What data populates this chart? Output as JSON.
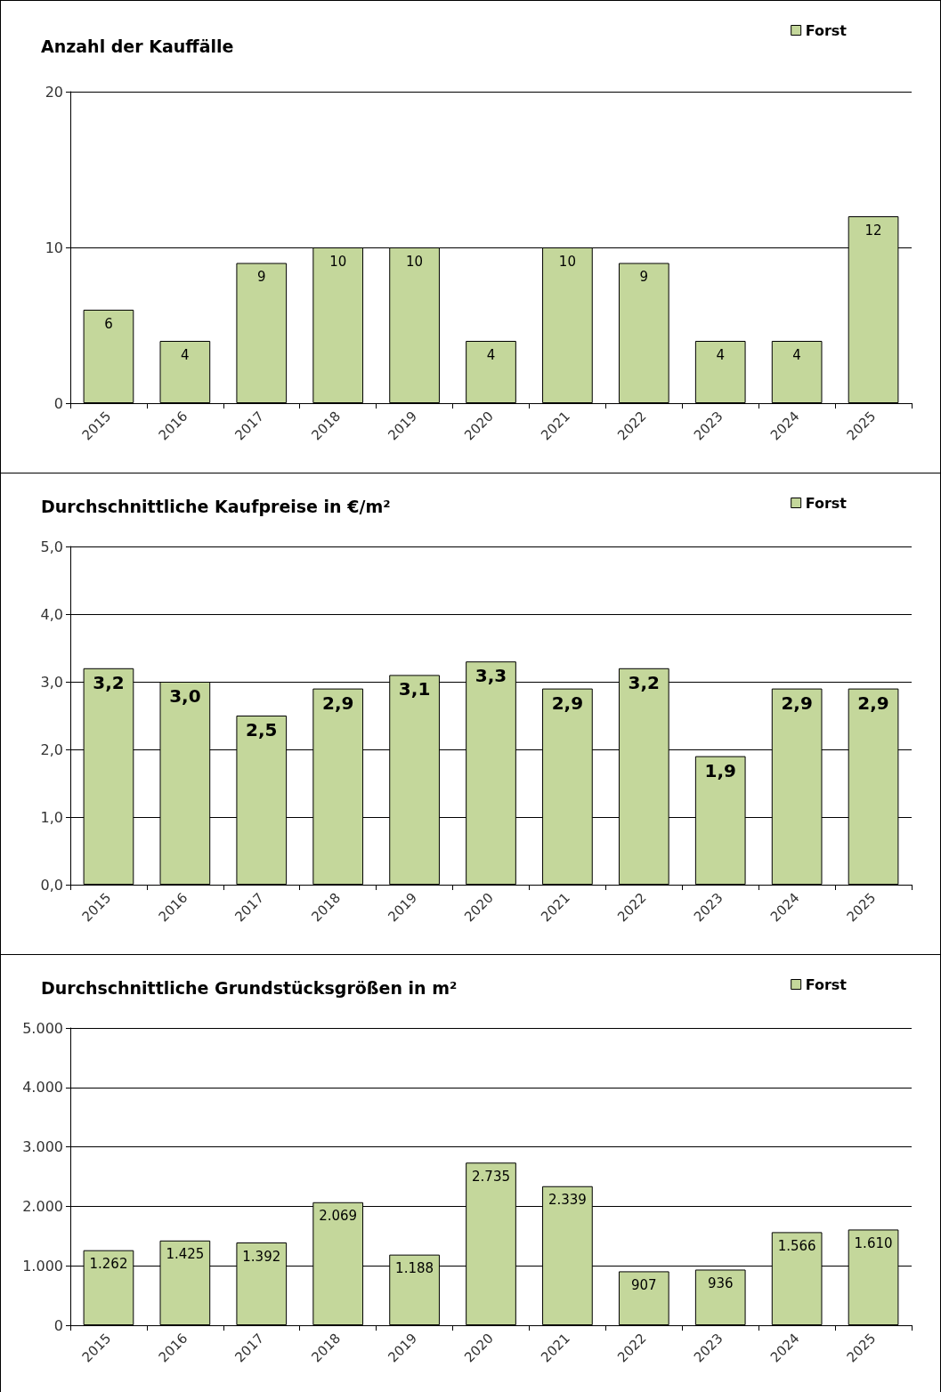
{
  "chart_data": [
    {
      "type": "bar",
      "title": "Anzahl der Kauffälle",
      "categories": [
        "2015",
        "2016",
        "2017",
        "2018",
        "2019",
        "2020",
        "2021",
        "2022",
        "2023",
        "2024",
        "2025"
      ],
      "series": [
        {
          "name": "Forst",
          "color": "#c4d79b",
          "values": [
            6,
            4,
            9,
            10,
            10,
            4,
            10,
            9,
            4,
            4,
            12
          ]
        }
      ],
      "data_labels": true,
      "ylim": [
        0,
        20
      ],
      "yticks": [
        0,
        10,
        20
      ],
      "grid": "y",
      "legend": "top right"
    },
    {
      "type": "bar",
      "title": "Durchschnittliche Kaufpreise in €/m²",
      "categories": [
        "2015",
        "2016",
        "2017",
        "2018",
        "2019",
        "2020",
        "2021",
        "2022",
        "2023",
        "2024",
        "2025"
      ],
      "series": [
        {
          "name": "Forst",
          "color": "#c4d79b",
          "values": [
            3.2,
            3.0,
            2.5,
            2.9,
            3.1,
            3.3,
            2.9,
            3.2,
            1.9,
            2.9,
            2.9
          ],
          "value_labels": [
            "3,2",
            "3,0",
            "2,5",
            "2,9",
            "3,1",
            "3,3",
            "2,9",
            "3,2",
            "1,9",
            "2,9",
            "2,9"
          ]
        }
      ],
      "ylim": [
        0,
        5
      ],
      "yticks": [
        {
          "value": 0,
          "label": "0,0"
        },
        {
          "value": 1,
          "label": "1,0"
        },
        {
          "value": 2,
          "label": "2,0"
        },
        {
          "value": 3,
          "label": "3,0"
        },
        {
          "value": 4,
          "label": "4,0"
        },
        {
          "value": 5,
          "label": "5,0"
        }
      ],
      "grid": "y",
      "legend": "top right"
    },
    {
      "type": "bar",
      "title": "Durchschnittliche Grundstücksgrößen in m²",
      "categories": [
        "2015",
        "2016",
        "2017",
        "2018",
        "2019",
        "2020",
        "2021",
        "2022",
        "2023",
        "2024",
        "2025"
      ],
      "series": [
        {
          "name": "Forst",
          "color": "#c4d79b",
          "values": [
            1262,
            1425,
            1392,
            2069,
            1188,
            2735,
            2339,
            907,
            936,
            1566,
            1610
          ],
          "value_labels": [
            "1.262",
            "1.425",
            "1.392",
            "2.069",
            "1.188",
            "2.735",
            "2.339",
            "907",
            "936",
            "1.566",
            "1.610"
          ]
        }
      ],
      "ylim": [
        0,
        5000
      ],
      "yticks": [
        0,
        {
          "value": 1000,
          "label": "1.000"
        },
        {
          "value": 2000,
          "label": "2.000"
        },
        {
          "value": 3000,
          "label": "3.000"
        },
        {
          "value": 4000,
          "label": "4.000"
        },
        {
          "value": 5000,
          "label": "5.000"
        }
      ],
      "grid": "y",
      "legend": "top right"
    }
  ]
}
